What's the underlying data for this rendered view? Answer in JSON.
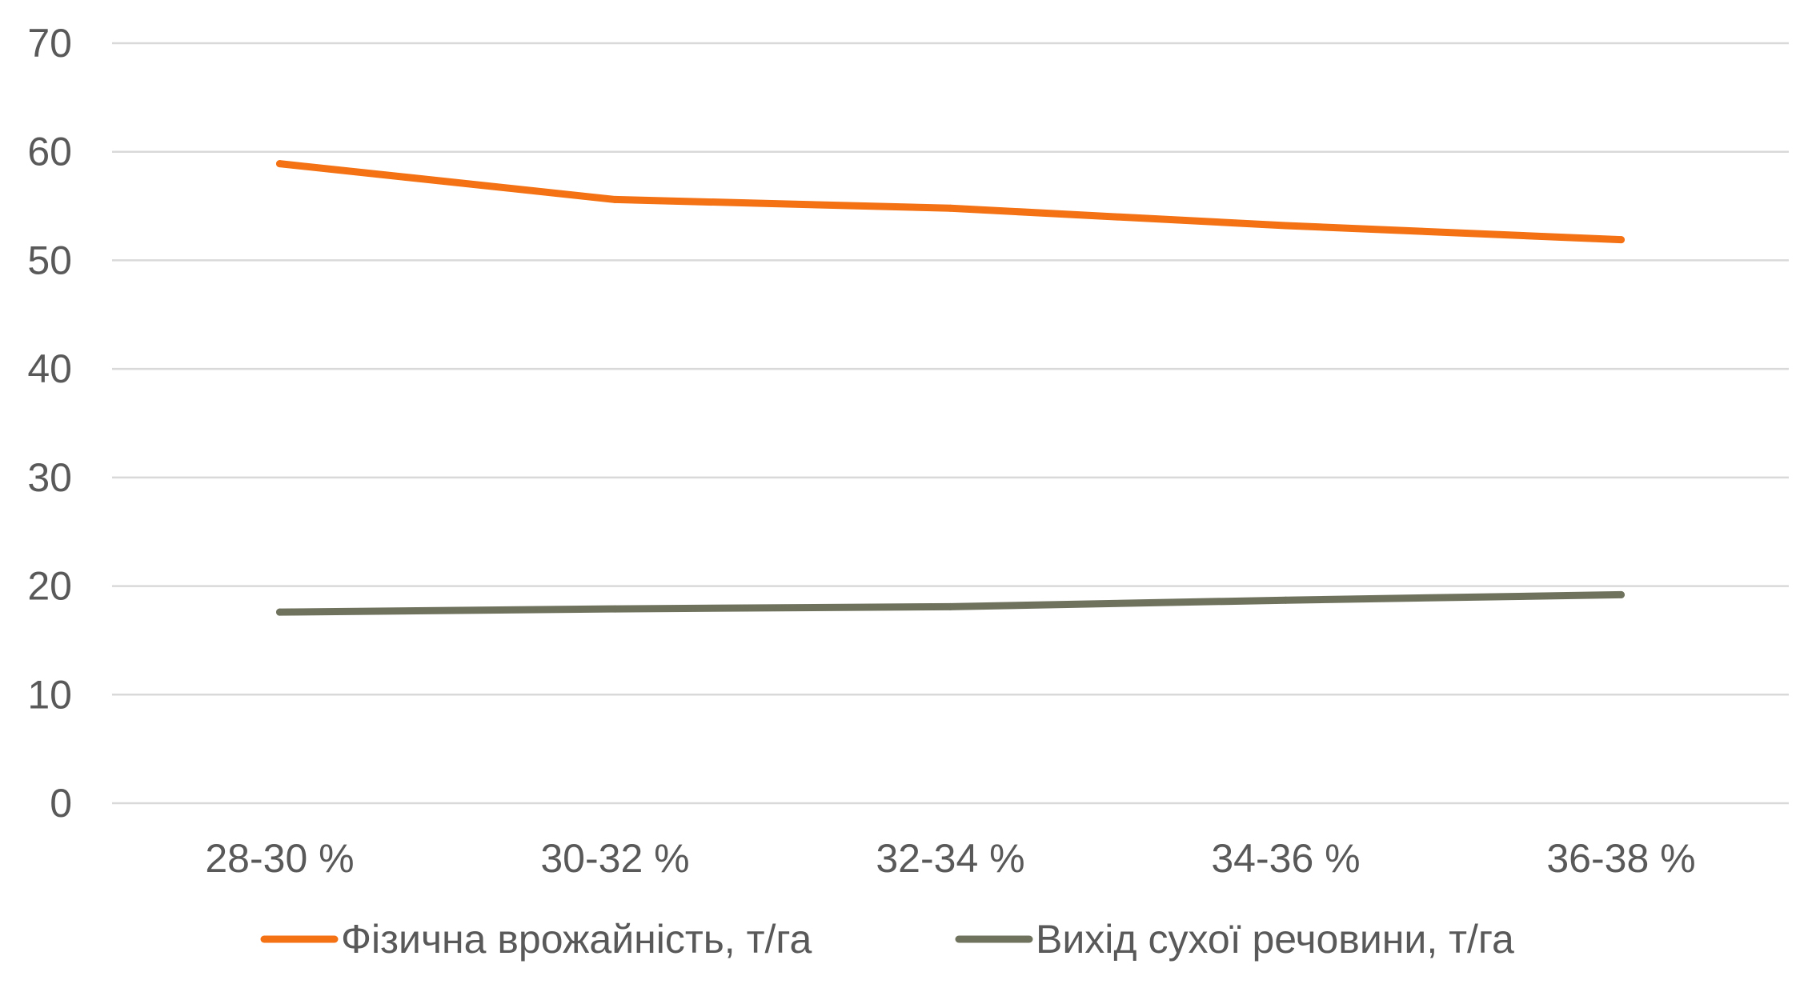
{
  "chart_data": {
    "type": "line",
    "title": "",
    "xlabel": "",
    "ylabel": "",
    "categories": [
      "28-30 %",
      "30-32 %",
      "32-34 %",
      "34-36 %",
      "36-38 %"
    ],
    "ylim": [
      0,
      70
    ],
    "yticks": [
      0,
      10,
      20,
      30,
      40,
      50,
      60,
      70
    ],
    "grid": true,
    "legend_position": "bottom",
    "series": [
      {
        "name": "Фізична врожайність, т/га",
        "color": "#F47114",
        "values": [
          58.9,
          55.6,
          54.8,
          53.2,
          51.9
        ]
      },
      {
        "name": "Вихід сухої речовини, т/га",
        "color": "#6F735E",
        "values": [
          17.6,
          17.9,
          18.1,
          18.7,
          19.2
        ]
      }
    ]
  }
}
